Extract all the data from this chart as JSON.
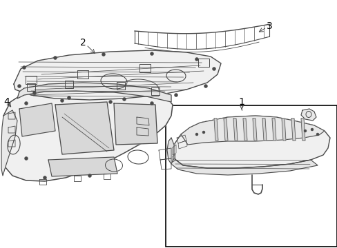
{
  "background_color": "#ffffff",
  "line_color": "#4a4a4a",
  "label_color": "#000000",
  "fig_width": 4.89,
  "fig_height": 3.6,
  "dpi": 100
}
